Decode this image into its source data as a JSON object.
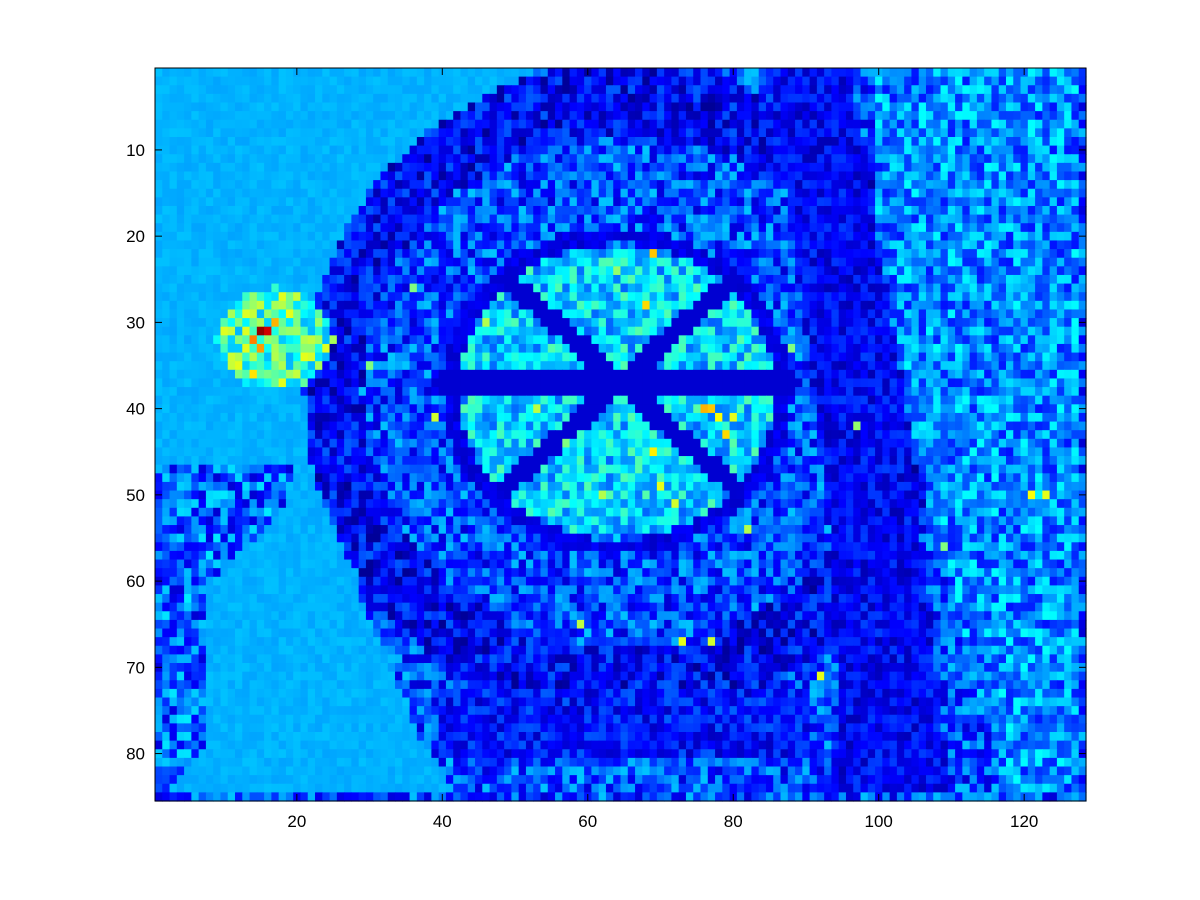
{
  "chart_data": {
    "type": "heatmap",
    "title": "",
    "xlabel": "",
    "ylabel": "",
    "colormap": "jet",
    "xlim": [
      0.5,
      128.5
    ],
    "ylim": [
      0.5,
      85.5
    ],
    "y_direction": "reverse",
    "grid": false,
    "x_ticks": [
      20,
      40,
      60,
      80,
      100,
      120
    ],
    "y_ticks": [
      10,
      20,
      30,
      40,
      50,
      60,
      70,
      80
    ],
    "x_tick_labels": [
      "20",
      "40",
      "60",
      "80",
      "100",
      "120"
    ],
    "y_tick_labels": [
      "10",
      "20",
      "30",
      "40",
      "50",
      "60",
      "70",
      "80"
    ],
    "grid_size": {
      "cols": 128,
      "rows": 85
    },
    "background_value": 0.28,
    "regions": [
      {
        "shape": "rect",
        "x": [
          1,
          128
        ],
        "y": [
          1,
          85
        ],
        "value": 0.2,
        "noise": 0.12
      },
      {
        "shape": "polygon",
        "points": [
          [
            1,
            1
          ],
          [
            52,
            1
          ],
          [
            40,
            8
          ],
          [
            30,
            25
          ],
          [
            26,
            45
          ],
          [
            29,
            62
          ],
          [
            37,
            78
          ],
          [
            42,
            85
          ],
          [
            1,
            85
          ]
        ],
        "value": 0.3,
        "noise": 0.015
      },
      {
        "shape": "polygon",
        "points": [
          [
            1,
            47
          ],
          [
            20,
            46
          ],
          [
            18,
            52
          ],
          [
            8,
            60
          ],
          [
            7,
            80
          ],
          [
            1,
            85
          ]
        ],
        "value": 0.22,
        "noise": 0.14
      },
      {
        "shape": "ring",
        "center": [
          65,
          38
        ],
        "radius_x": [
          36,
          44
        ],
        "radius_y": [
          30,
          38
        ],
        "value": 0.12,
        "noise": 0.1
      },
      {
        "shape": "ellipse",
        "center": [
          64,
          38
        ],
        "radius_x": 22,
        "radius_y": 17,
        "value": 0.34,
        "noise": 0.12
      },
      {
        "shape": "ellipse",
        "center": [
          64,
          38
        ],
        "radius_x": 24,
        "radius_y": 19,
        "ring_only": true,
        "value": 0.1,
        "noise": 0.03
      },
      {
        "shape": "spoke",
        "from": [
          40,
          37
        ],
        "to": [
          88,
          37
        ],
        "width": 2,
        "value": 0.08
      },
      {
        "shape": "spoke",
        "from": [
          49,
          49
        ],
        "to": [
          80,
          25
        ],
        "width": 2,
        "value": 0.08
      },
      {
        "shape": "spoke",
        "from": [
          49,
          25
        ],
        "to": [
          80,
          49
        ],
        "width": 2,
        "value": 0.08
      },
      {
        "shape": "rect",
        "x": [
          40,
          90
        ],
        "y": [
          73,
          80
        ],
        "value": 0.14,
        "noise": 0.08
      },
      {
        "shape": "polygon",
        "points": [
          [
            99,
            1
          ],
          [
            128,
            1
          ],
          [
            128,
            85
          ],
          [
            118,
            85
          ],
          [
            108,
            55
          ],
          [
            100,
            30
          ]
        ],
        "value": 0.26,
        "noise": 0.12
      },
      {
        "shape": "polygon",
        "points": [
          [
            85,
            1
          ],
          [
            96,
            1
          ],
          [
            104,
            40
          ],
          [
            110,
            85
          ],
          [
            95,
            85
          ],
          [
            93,
            50
          ]
        ],
        "value": 0.12,
        "noise": 0.07
      },
      {
        "shape": "ellipse",
        "center": [
          17,
          32
        ],
        "radius_x": 8,
        "radius_y": 6,
        "value": 0.45,
        "noise": 0.15
      }
    ],
    "hotspots": [
      {
        "x": 15,
        "y": 31,
        "value": 0.98
      },
      {
        "x": 16,
        "y": 31,
        "value": 0.92
      },
      {
        "x": 14,
        "y": 32,
        "value": 0.75
      },
      {
        "x": 17,
        "y": 30,
        "value": 0.7
      },
      {
        "x": 15,
        "y": 33,
        "value": 0.72
      },
      {
        "x": 14,
        "y": 36,
        "value": 0.65
      },
      {
        "x": 18,
        "y": 37,
        "value": 0.6
      },
      {
        "x": 19,
        "y": 29,
        "value": 0.6
      },
      {
        "x": 21,
        "y": 32,
        "value": 0.55
      },
      {
        "x": 69,
        "y": 22,
        "value": 0.68
      },
      {
        "x": 68,
        "y": 28,
        "value": 0.66
      },
      {
        "x": 76,
        "y": 40,
        "value": 0.7
      },
      {
        "x": 77,
        "y": 40,
        "value": 0.68
      },
      {
        "x": 78,
        "y": 41,
        "value": 0.62
      },
      {
        "x": 79,
        "y": 43,
        "value": 0.66
      },
      {
        "x": 80,
        "y": 41,
        "value": 0.6
      },
      {
        "x": 69,
        "y": 45,
        "value": 0.64
      },
      {
        "x": 70,
        "y": 49,
        "value": 0.6
      },
      {
        "x": 72,
        "y": 51,
        "value": 0.58
      },
      {
        "x": 62,
        "y": 50,
        "value": 0.55
      },
      {
        "x": 53,
        "y": 40,
        "value": 0.56
      },
      {
        "x": 46,
        "y": 30,
        "value": 0.55
      },
      {
        "x": 39,
        "y": 41,
        "value": 0.58
      },
      {
        "x": 59,
        "y": 65,
        "value": 0.56
      },
      {
        "x": 73,
        "y": 67,
        "value": 0.6
      },
      {
        "x": 77,
        "y": 67,
        "value": 0.58
      },
      {
        "x": 92,
        "y": 71,
        "value": 0.6
      },
      {
        "x": 121,
        "y": 50,
        "value": 0.62
      },
      {
        "x": 123,
        "y": 50,
        "value": 0.6
      },
      {
        "x": 97,
        "y": 42,
        "value": 0.52
      },
      {
        "x": 88,
        "y": 33,
        "value": 0.5
      },
      {
        "x": 109,
        "y": 56,
        "value": 0.5
      },
      {
        "x": 36,
        "y": 26,
        "value": 0.5
      },
      {
        "x": 30,
        "y": 35,
        "value": 0.5
      },
      {
        "x": 82,
        "y": 54,
        "value": 0.55
      },
      {
        "x": 57,
        "y": 44,
        "value": 0.5
      },
      {
        "x": 64,
        "y": 24,
        "value": 0.52
      }
    ]
  },
  "colors": {
    "axes_box": "#000000",
    "figure_background": "#ffffff"
  }
}
